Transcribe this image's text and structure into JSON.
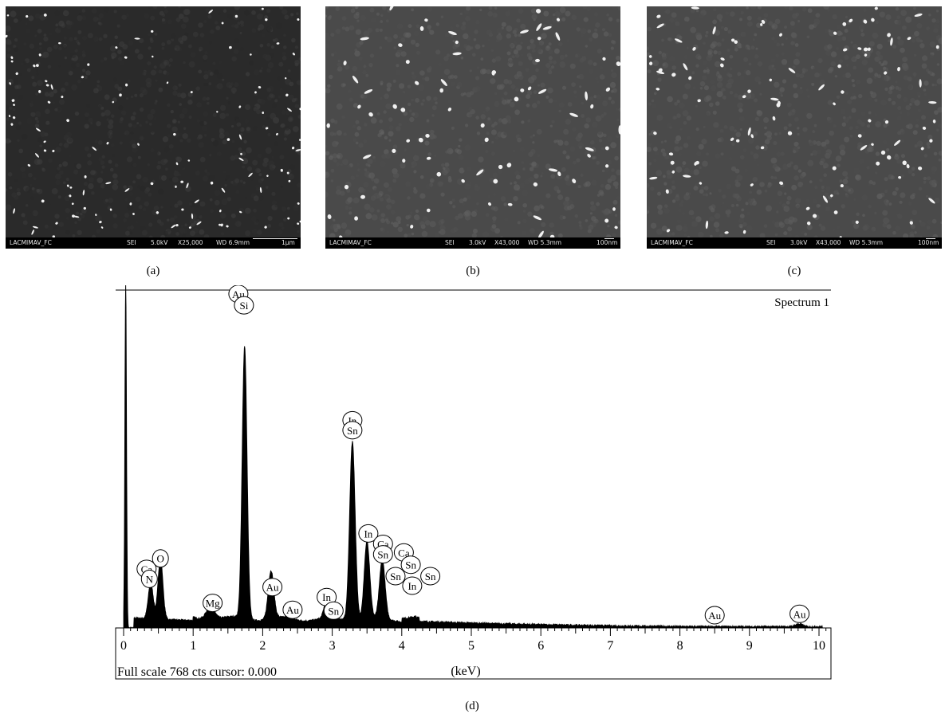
{
  "sem_panels": [
    {
      "id": "a",
      "caption": "(a)",
      "info": {
        "lab": "LACMIMAV_FC",
        "mode": "SEI",
        "voltage": "5.0kV",
        "magnification": "X25,000",
        "wd": "WD 6.9mm",
        "scale": "1µm"
      }
    },
    {
      "id": "b",
      "caption": "(b)",
      "info": {
        "lab": "LACMIMAV_FC",
        "mode": "SEI",
        "voltage": "3.0kV",
        "magnification": "X43,000",
        "wd": "WD 5.3mm",
        "scale": "100nm"
      }
    },
    {
      "id": "c",
      "caption": "(c)",
      "info": {
        "lab": "LACMIMAV_FC",
        "mode": "SEI",
        "voltage": "3.0kV",
        "magnification": "X43,000",
        "wd": "WD 5.3mm",
        "scale": "100nm"
      }
    }
  ],
  "chart_data": {
    "type": "area",
    "title": "Spectrum 1",
    "xlabel": "(keV)",
    "ylabel": "",
    "xlim": [
      0,
      10.1
    ],
    "ylim": [
      0,
      768
    ],
    "x_ticks": [
      "0",
      "1",
      "2",
      "3",
      "4",
      "5",
      "6",
      "7",
      "8",
      "9",
      "10"
    ],
    "footer": "Full scale 768 cts cursor: 0.000",
    "caption": "(d)",
    "peaks": [
      {
        "x": 0.03,
        "y": 768
      },
      {
        "x": 0.39,
        "y": 80
      },
      {
        "x": 0.53,
        "y": 135
      },
      {
        "x": 1.25,
        "y": 30
      },
      {
        "x": 1.74,
        "y": 600
      },
      {
        "x": 2.12,
        "y": 105
      },
      {
        "x": 2.9,
        "y": 28
      },
      {
        "x": 3.29,
        "y": 395
      },
      {
        "x": 3.5,
        "y": 172
      },
      {
        "x": 3.72,
        "y": 130
      },
      {
        "x": 9.71,
        "y": 6
      }
    ],
    "annotations": [
      {
        "text": "Au",
        "x": 1.65,
        "y": 735
      },
      {
        "text": "Si",
        "x": 1.73,
        "y": 710
      },
      {
        "text": "Ca",
        "x": 0.33,
        "y": 130
      },
      {
        "text": "O",
        "x": 0.53,
        "y": 153
      },
      {
        "text": "N",
        "x": 0.37,
        "y": 108
      },
      {
        "text": "Mg",
        "x": 1.28,
        "y": 55
      },
      {
        "text": "Au",
        "x": 2.14,
        "y": 90
      },
      {
        "text": "Au",
        "x": 2.43,
        "y": 40
      },
      {
        "text": "In",
        "x": 2.92,
        "y": 68
      },
      {
        "text": "Sn",
        "x": 3.02,
        "y": 38
      },
      {
        "text": "In",
        "x": 3.29,
        "y": 457
      },
      {
        "text": "Sn",
        "x": 3.29,
        "y": 435
      },
      {
        "text": "In",
        "x": 3.52,
        "y": 208
      },
      {
        "text": "Ca",
        "x": 3.73,
        "y": 185
      },
      {
        "text": "Sn",
        "x": 3.73,
        "y": 162
      },
      {
        "text": "Ca",
        "x": 4.03,
        "y": 166
      },
      {
        "text": "Sn",
        "x": 4.13,
        "y": 139
      },
      {
        "text": "Sn",
        "x": 3.91,
        "y": 114
      },
      {
        "text": "Sn",
        "x": 4.41,
        "y": 114
      },
      {
        "text": "In",
        "x": 4.15,
        "y": 93
      },
      {
        "text": "Au",
        "x": 8.5,
        "y": 28
      },
      {
        "text": "Au",
        "x": 9.72,
        "y": 31
      }
    ]
  }
}
